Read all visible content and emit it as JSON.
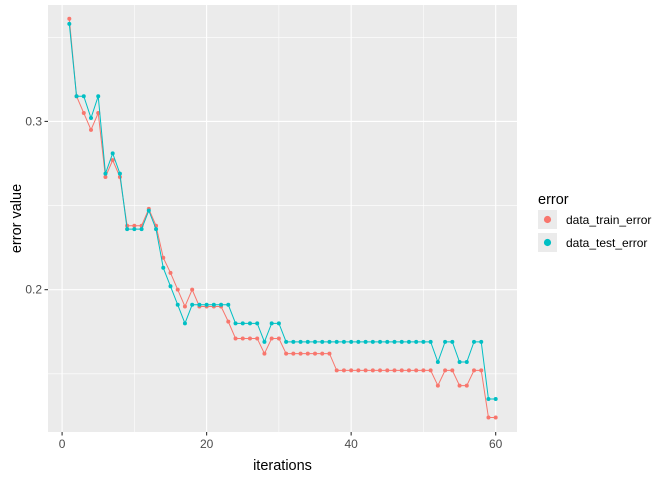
{
  "chart_data": {
    "type": "line",
    "title": "",
    "xlabel": "iterations",
    "ylabel": "error value",
    "xlim": [
      -1.95,
      62.95
    ],
    "ylim": [
      0.1154,
      0.3692
    ],
    "x_ticks": [
      0,
      20,
      40,
      60
    ],
    "x_tick_labels": [
      "0",
      "20",
      "40",
      "60"
    ],
    "y_ticks": [
      0.2,
      0.3
    ],
    "y_tick_labels": [
      "0.2",
      "0.3"
    ],
    "grid": true,
    "panel_background": "#ebebeb",
    "legend": {
      "title": "error",
      "position": "right"
    },
    "x": [
      1,
      2,
      3,
      4,
      5,
      6,
      7,
      8,
      9,
      10,
      11,
      12,
      13,
      14,
      15,
      16,
      17,
      18,
      19,
      20,
      21,
      22,
      23,
      24,
      25,
      26,
      27,
      28,
      29,
      30,
      31,
      32,
      33,
      34,
      35,
      36,
      37,
      38,
      39,
      40,
      41,
      42,
      43,
      44,
      45,
      46,
      47,
      48,
      49,
      50,
      51,
      52,
      53,
      54,
      55,
      56,
      57,
      58,
      59,
      60
    ],
    "series": [
      {
        "name": "data_train_error",
        "color": "#F8766D",
        "values": [
          0.361,
          0.315,
          0.305,
          0.295,
          0.305,
          0.267,
          0.277,
          0.267,
          0.238,
          0.238,
          0.238,
          0.248,
          0.238,
          0.219,
          0.21,
          0.2,
          0.19,
          0.2,
          0.19,
          0.19,
          0.19,
          0.19,
          0.181,
          0.171,
          0.171,
          0.171,
          0.171,
          0.162,
          0.171,
          0.171,
          0.162,
          0.162,
          0.162,
          0.162,
          0.162,
          0.162,
          0.162,
          0.152,
          0.152,
          0.152,
          0.152,
          0.152,
          0.152,
          0.152,
          0.152,
          0.152,
          0.152,
          0.152,
          0.152,
          0.152,
          0.152,
          0.143,
          0.152,
          0.152,
          0.143,
          0.143,
          0.152,
          0.152,
          0.124,
          0.124
        ]
      },
      {
        "name": "data_test_error",
        "color": "#00BFC4",
        "values": [
          0.358,
          0.315,
          0.315,
          0.302,
          0.315,
          0.269,
          0.281,
          0.269,
          0.236,
          0.236,
          0.236,
          0.247,
          0.236,
          0.213,
          0.202,
          0.191,
          0.18,
          0.191,
          0.191,
          0.191,
          0.191,
          0.191,
          0.191,
          0.18,
          0.18,
          0.18,
          0.18,
          0.169,
          0.18,
          0.18,
          0.169,
          0.169,
          0.169,
          0.169,
          0.169,
          0.169,
          0.169,
          0.169,
          0.169,
          0.169,
          0.169,
          0.169,
          0.169,
          0.169,
          0.169,
          0.169,
          0.169,
          0.169,
          0.169,
          0.169,
          0.169,
          0.157,
          0.169,
          0.169,
          0.157,
          0.157,
          0.169,
          0.169,
          0.135,
          0.135
        ]
      }
    ]
  }
}
